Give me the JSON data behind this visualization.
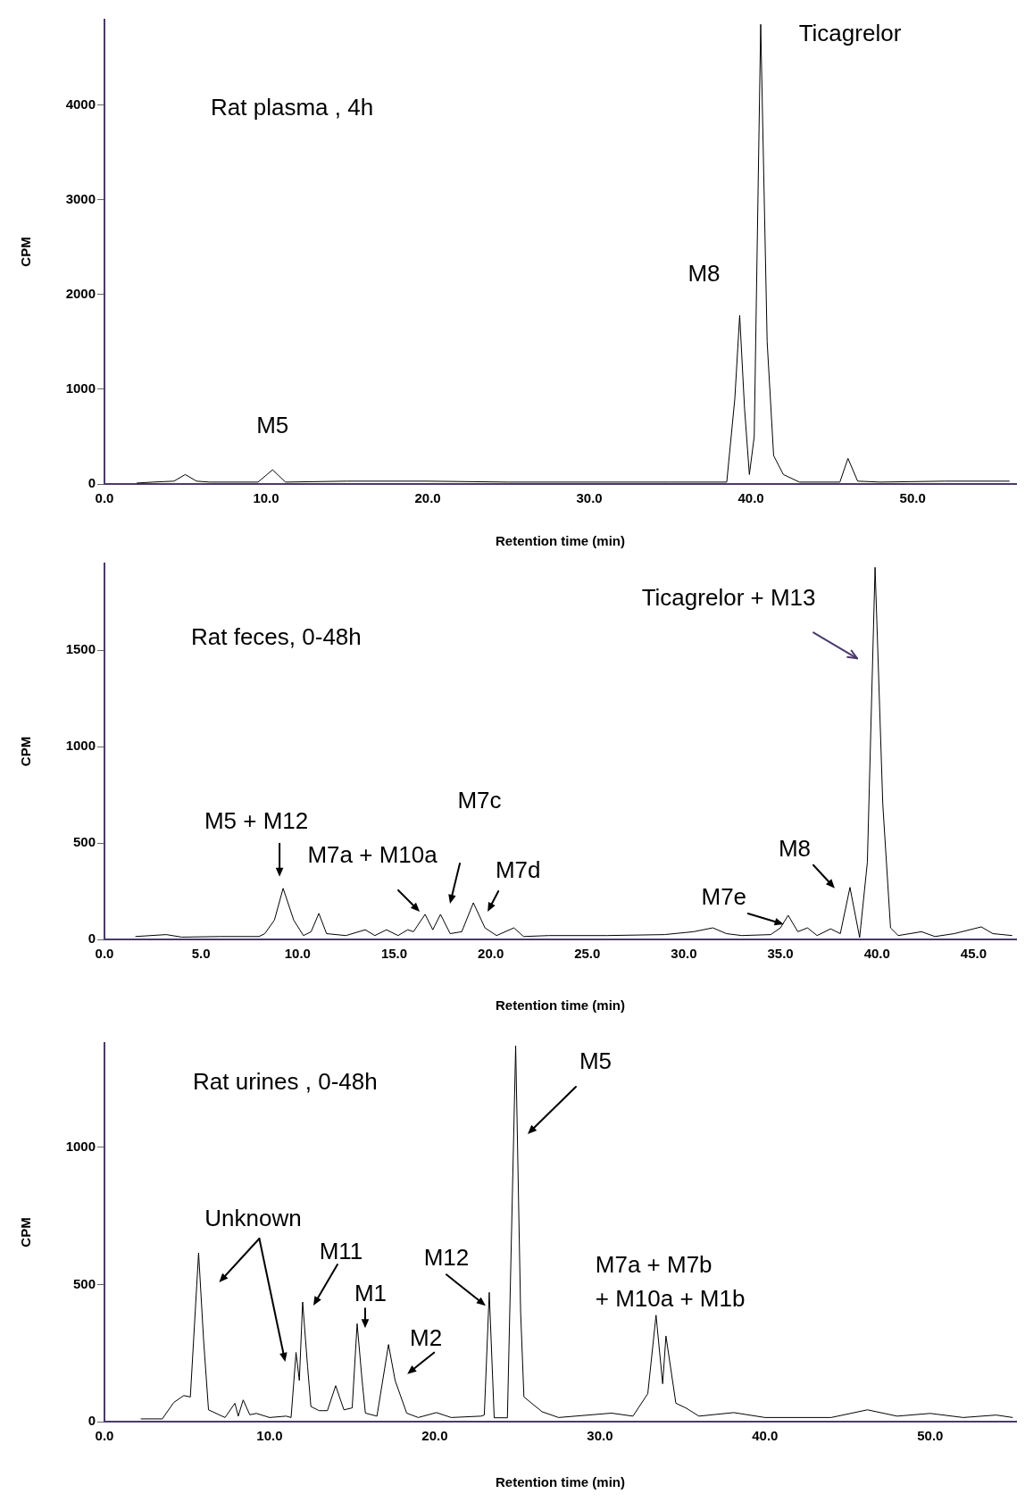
{
  "chart_data": [
    {
      "type": "line",
      "title": "Rat plasma , 4h",
      "xlabel": "Retention time (min)",
      "ylabel": "CPM",
      "color": "#000000",
      "x": [
        2,
        3,
        4.3,
        5.0,
        5.7,
        6.5,
        9.5,
        10.4,
        11.2,
        15,
        20,
        25,
        30,
        35,
        38.5,
        39.0,
        39.3,
        39.6,
        39.9,
        40.2,
        40.6,
        41.0,
        41.4,
        42,
        43,
        45.5,
        46.0,
        46.6,
        48,
        52,
        56
      ],
      "values": [
        10,
        20,
        30,
        100,
        30,
        20,
        20,
        150,
        20,
        30,
        30,
        20,
        20,
        20,
        20,
        900,
        1780,
        800,
        100,
        500,
        4850,
        1500,
        300,
        100,
        20,
        20,
        270,
        30,
        20,
        30,
        30
      ],
      "xlim": [
        0,
        56.4
      ],
      "xticks": [
        {
          "value": 0,
          "label": "0.0"
        },
        {
          "value": 10,
          "label": "10.0"
        },
        {
          "value": 20,
          "label": "20.0"
        },
        {
          "value": 30,
          "label": "30.0"
        },
        {
          "value": 40,
          "label": "40.0"
        },
        {
          "value": 50,
          "label": "50.0"
        }
      ],
      "ylim": [
        0,
        4900
      ],
      "yticks": [
        0,
        1000,
        2000,
        3000,
        4000
      ],
      "annotations": [
        {
          "text": "M5",
          "x": 10.4,
          "y": 150
        },
        {
          "text": "M8",
          "x": 39.3,
          "y": 1780
        },
        {
          "text": "Ticagrelor",
          "x": 40.6,
          "y": 4850
        }
      ]
    },
    {
      "type": "line",
      "title": "Rat feces, 0-48h",
      "xlabel": "Retention time (min)",
      "ylabel": "CPM",
      "color": "#000000",
      "x": [
        1.6,
        3.2,
        4,
        6,
        8,
        8.3,
        8.8,
        9.25,
        9.8,
        10.3,
        10.7,
        11.1,
        11.5,
        12.5,
        13.5,
        14.0,
        14.6,
        15.2,
        15.7,
        16.0,
        16.6,
        17.0,
        17.4,
        17.9,
        18.5,
        19.1,
        19.7,
        20.3,
        21.2,
        21.7,
        23,
        26,
        29,
        30.5,
        31.5,
        32.2,
        33,
        34.5,
        35.0,
        35.4,
        35.9,
        36.4,
        36.9,
        37.6,
        38.1,
        38.6,
        39.1,
        39.5,
        39.9,
        40.3,
        40.7,
        41.1,
        42.3,
        43,
        44,
        45.4,
        46,
        47
      ],
      "values": [
        15,
        25,
        12,
        15,
        15,
        30,
        100,
        265,
        100,
        20,
        40,
        135,
        30,
        20,
        50,
        20,
        50,
        20,
        50,
        40,
        130,
        50,
        130,
        30,
        40,
        190,
        60,
        20,
        60,
        15,
        20,
        20,
        25,
        40,
        60,
        30,
        20,
        25,
        60,
        125,
        40,
        60,
        20,
        55,
        30,
        270,
        10,
        400,
        1930,
        700,
        60,
        20,
        40,
        15,
        30,
        65,
        30,
        20
      ],
      "xlim": [
        0,
        47.2
      ],
      "xticks": [
        {
          "value": 0,
          "label": "0.0"
        },
        {
          "value": 5,
          "label": "5.0"
        },
        {
          "value": 10,
          "label": "10.0"
        },
        {
          "value": 15,
          "label": "15.0"
        },
        {
          "value": 20,
          "label": "20.0"
        },
        {
          "value": 25,
          "label": "25.0"
        },
        {
          "value": 30,
          "label": "30.0"
        },
        {
          "value": 35,
          "label": "35.0"
        },
        {
          "value": 40,
          "label": "40.0"
        },
        {
          "value": 45,
          "label": "45.0"
        }
      ],
      "ylim": [
        0,
        1950
      ],
      "yticks": [
        0,
        500,
        1000,
        1500
      ],
      "annotations": [
        {
          "text": "Ticagrelor + M13",
          "x": 39.9,
          "y": 1930
        },
        {
          "text": "M5 + M12",
          "x": 9.25,
          "y": 265
        },
        {
          "text": "M7a + M10a",
          "x": 16.6,
          "y": 130
        },
        "M7c",
        {
          "text": "M7d",
          "x": 19.1,
          "y": 190
        },
        {
          "text": "M7e",
          "x": 35.4,
          "y": 125
        },
        {
          "text": "M8",
          "x": 38.6,
          "y": 270
        }
      ]
    },
    {
      "type": "line",
      "title": "Rat urines , 0-48h",
      "xlabel": "Retention time (min)",
      "ylabel": "CPM",
      "color": "#000000",
      "x": [
        2.2,
        3.5,
        4.2,
        4.8,
        5.2,
        5.7,
        6.0,
        6.3,
        7.3,
        7.9,
        8.1,
        8.4,
        8.8,
        9.2,
        10,
        11,
        11.3,
        11.6,
        11.8,
        12.0,
        12.3,
        12.5,
        13.0,
        13.5,
        14.0,
        14.5,
        15.0,
        15.3,
        15.6,
        15.8,
        16.5,
        17.2,
        17.6,
        18.3,
        19,
        20.1,
        21,
        22.8,
        23.0,
        23.3,
        23.6,
        24.4,
        24.9,
        25.2,
        25.4,
        26.5,
        27.5,
        30.7,
        32,
        32.9,
        33.4,
        33.8,
        34.0,
        34.6,
        35.2,
        36,
        38.1,
        40,
        44,
        46.2,
        48,
        50,
        52,
        54,
        55
      ],
      "values": [
        10,
        10,
        70,
        95,
        90,
        615,
        300,
        43,
        15,
        67,
        20,
        79,
        25,
        30,
        15,
        20,
        15,
        252,
        150,
        436,
        200,
        55,
        40,
        40,
        131,
        43,
        50,
        357,
        150,
        31,
        20,
        281,
        150,
        31,
        15,
        33,
        15,
        20,
        24,
        471,
        14,
        14,
        1370,
        400,
        90,
        36,
        15,
        31,
        20,
        102,
        388,
        138,
        312,
        67,
        50,
        20,
        33,
        15,
        15,
        43,
        20,
        30,
        15,
        24,
        15
      ],
      "xlim": [
        0,
        55.2
      ],
      "xticks": [
        {
          "value": 0,
          "label": "0.0"
        },
        {
          "value": 10,
          "label": "10.0"
        },
        {
          "value": 20,
          "label": "20.0"
        },
        {
          "value": 30,
          "label": "30.0"
        },
        {
          "value": 40,
          "label": "40.0"
        },
        {
          "value": 50,
          "label": "50.0"
        }
      ],
      "ylim": [
        0,
        1380
      ],
      "yticks": [
        0,
        500,
        1000
      ],
      "annotations": [
        {
          "text": "Unknown",
          "x": 5.7,
          "y": 615
        },
        {
          "text": "M11",
          "x": 12.0,
          "y": 436
        },
        {
          "text": "M1",
          "x": 15.3,
          "y": 357
        },
        {
          "text": "M2",
          "x": 17.2,
          "y": 281
        },
        {
          "text": "M12",
          "x": 23.3,
          "y": 471
        },
        "M5",
        {
          "text": "M7a + M7b\n+ M10a + M1b",
          "x": 33.4,
          "y": 388
        }
      ]
    }
  ]
}
